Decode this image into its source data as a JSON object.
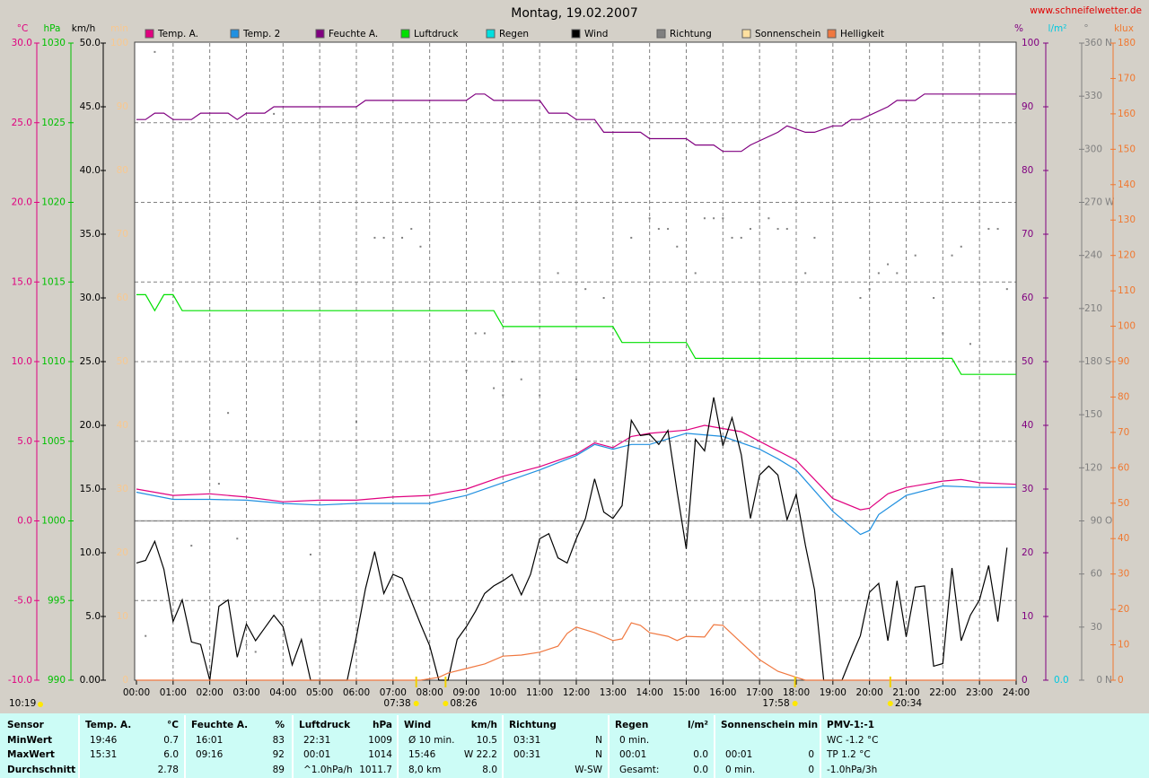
{
  "chart_data": {
    "type": "line",
    "title": "Montag, 19.02.2007",
    "source": "www.schneifelwetter.de",
    "xlim": [
      0,
      24
    ],
    "xticks": [
      {
        "value": 0,
        "label": "00:00"
      },
      {
        "value": 1,
        "label": "01:00"
      },
      {
        "value": 2,
        "label": "02:00"
      },
      {
        "value": 3,
        "label": "03:00"
      },
      {
        "value": 4,
        "label": "04:00"
      },
      {
        "value": 5,
        "label": "05:00"
      },
      {
        "value": 6,
        "label": "06:00"
      },
      {
        "value": 7,
        "label": "07:00"
      },
      {
        "value": 8,
        "label": "08:00"
      },
      {
        "value": 9,
        "label": "09:00"
      },
      {
        "value": 10,
        "label": "10:00"
      },
      {
        "value": 11,
        "label": "11:00"
      },
      {
        "value": 12,
        "label": "12:00"
      },
      {
        "value": 13,
        "label": "13:00"
      },
      {
        "value": 14,
        "label": "14:00"
      },
      {
        "value": 15,
        "label": "15:00"
      },
      {
        "value": 16,
        "label": "16:00"
      },
      {
        "value": 17,
        "label": "17:00"
      },
      {
        "value": 18,
        "label": "18:00"
      },
      {
        "value": 19,
        "label": "19:00"
      },
      {
        "value": 20,
        "label": "20:00"
      },
      {
        "value": 21,
        "label": "21:00"
      },
      {
        "value": 22,
        "label": "22:00"
      },
      {
        "value": 23,
        "label": "23:00"
      },
      {
        "value": 24,
        "label": "24:00"
      }
    ],
    "axes": [
      {
        "label": "°C",
        "color": "#e0007f",
        "lim": [
          -10,
          30
        ],
        "zero_line": true,
        "ticks": [
          {
            "value": -10,
            "label": "-10.0"
          },
          {
            "value": -5,
            "label": "-5.0"
          },
          {
            "value": 0,
            "label": "0.0"
          },
          {
            "value": 5,
            "label": "5.0"
          },
          {
            "value": 10,
            "label": "10.0"
          },
          {
            "value": 15,
            "label": "15.0"
          },
          {
            "value": 20,
            "label": "20.0"
          },
          {
            "value": 25,
            "label": "25.0"
          },
          {
            "value": 30,
            "label": "30.0"
          }
        ]
      },
      {
        "label": "hPa",
        "color": "#00c000",
        "lim": [
          990,
          1030
        ],
        "ticks": [
          990,
          995,
          1000,
          1005,
          1010,
          1015,
          1020,
          1025,
          1030
        ]
      },
      {
        "label": "km/h",
        "color": "#000000",
        "lim": [
          0,
          50
        ],
        "ticks": [
          {
            "value": 0,
            "label": "0.00"
          },
          {
            "value": 5,
            "label": "5.0"
          },
          {
            "value": 10,
            "label": "10.0"
          },
          {
            "value": 15,
            "label": "15.0"
          },
          {
            "value": 20,
            "label": "20.0"
          },
          {
            "value": 25,
            "label": "25.0"
          },
          {
            "value": 30,
            "label": "30.0"
          },
          {
            "value": 35,
            "label": "35.0"
          },
          {
            "value": 40,
            "label": "40.0"
          },
          {
            "value": 45,
            "label": "45.0"
          },
          {
            "value": 50,
            "label": "50.0"
          }
        ]
      },
      {
        "label": "min",
        "color": "#f8c890",
        "lim": [
          0,
          100
        ],
        "ticks": [
          0,
          10,
          20,
          30,
          40,
          50,
          60,
          70,
          80,
          90,
          100
        ]
      },
      {
        "label": "%",
        "color": "#800080",
        "lim": [
          0,
          100
        ],
        "ticks": [
          0,
          10,
          20,
          30,
          40,
          50,
          60,
          70,
          80,
          90,
          100
        ]
      },
      {
        "label": "l/m²",
        "color": "#00c8e0",
        "ticks": [
          {
            "value": 0,
            "label": "0.0"
          }
        ]
      },
      {
        "label": "°",
        "color": "#808080",
        "lim": [
          0,
          360
        ],
        "grid": [
          45,
          90,
          135,
          180,
          225,
          270,
          315
        ],
        "ticks": [
          0,
          30,
          60,
          90,
          120,
          150,
          180,
          210,
          240,
          270,
          300,
          330,
          360
        ],
        "compass": [
          {
            "value": 0,
            "label": "N"
          },
          {
            "value": 90,
            "label": "O"
          },
          {
            "value": 180,
            "label": "S"
          },
          {
            "value": 270,
            "label": "W"
          },
          {
            "value": 360,
            "label": "N"
          }
        ]
      },
      {
        "label": "klux",
        "color": "#f07830",
        "lim": [
          0,
          180
        ],
        "ticks": [
          0,
          10,
          20,
          30,
          40,
          50,
          60,
          70,
          80,
          90,
          100,
          110,
          120,
          130,
          140,
          150,
          160,
          170,
          180
        ]
      }
    ],
    "series": [
      {
        "name": "Temp. A.",
        "color": "#e0007f",
        "axis": "°C",
        "x": [
          0,
          1,
          2,
          3,
          4,
          5,
          6,
          7,
          8,
          9,
          10,
          11,
          12,
          12.5,
          13,
          13.5,
          14,
          15,
          15.5,
          16.5,
          17,
          18,
          19,
          19.75,
          20,
          20.5,
          21,
          22,
          22.5,
          23,
          24
        ],
        "values": [
          2.0,
          1.6,
          1.7,
          1.5,
          1.2,
          1.3,
          1.3,
          1.5,
          1.6,
          2.0,
          2.8,
          3.4,
          4.2,
          4.9,
          4.6,
          5.3,
          5.5,
          5.7,
          6.0,
          5.6,
          5.0,
          3.8,
          1.4,
          0.7,
          0.8,
          1.7,
          2.1,
          2.5,
          2.6,
          2.4,
          2.3
        ]
      },
      {
        "name": "Temp. 2",
        "color": "#2090e0",
        "axis": "°C",
        "x": [
          0,
          1,
          2,
          3,
          4,
          5,
          6,
          7,
          8,
          9,
          10,
          11,
          12,
          12.5,
          13,
          13.5,
          14,
          15,
          16,
          17,
          17.5,
          18,
          19,
          19.75,
          20,
          20.25,
          21,
          22,
          23,
          24
        ],
        "values": [
          1.8,
          1.35,
          1.35,
          1.3,
          1.1,
          1.0,
          1.1,
          1.1,
          1.1,
          1.6,
          2.4,
          3.2,
          4.1,
          4.8,
          4.5,
          4.8,
          4.8,
          5.5,
          5.3,
          4.5,
          3.9,
          3.2,
          0.6,
          -0.85,
          -0.6,
          0.4,
          1.6,
          2.2,
          2.1,
          2.1
        ]
      },
      {
        "name": "Feuchte A.",
        "color": "#800080",
        "axis": "%",
        "x": [
          0,
          0.25,
          0.5,
          0.75,
          1,
          1.5,
          1.75,
          2.5,
          2.75,
          3,
          3.5,
          3.75,
          6,
          6.25,
          9,
          9.25,
          9.5,
          9.75,
          11,
          11.25,
          11.75,
          12,
          12.5,
          12.75,
          13.75,
          14,
          15,
          15.25,
          15.75,
          16,
          16.5,
          16.75,
          17.5,
          17.75,
          18.25,
          18.5,
          19,
          19.25,
          19.5,
          19.75,
          20.5,
          20.75,
          21.25,
          21.5,
          24
        ],
        "values": [
          88,
          88,
          89,
          89,
          88,
          88,
          89,
          89,
          88,
          89,
          89,
          90,
          90,
          91,
          91,
          92,
          92,
          91,
          91,
          89,
          89,
          88,
          88,
          86,
          86,
          85,
          85,
          84,
          84,
          83,
          83,
          84,
          86,
          87,
          86,
          86,
          87,
          87,
          88,
          88,
          90,
          91,
          91,
          92,
          92
        ]
      },
      {
        "name": "Luftdruck",
        "color": "#00e000",
        "axis": "hPa",
        "x": [
          0,
          0.25,
          0.5,
          0.75,
          1,
          1.25,
          9.75,
          10,
          13,
          13.25,
          15,
          15.25,
          22.25,
          22.5,
          24
        ],
        "values": [
          1014.2,
          1014.2,
          1013.2,
          1014.2,
          1014.2,
          1013.2,
          1013.2,
          1012.2,
          1012.2,
          1011.2,
          1011.2,
          1010.2,
          1010.2,
          1009.2,
          1009.2
        ]
      },
      {
        "name": "Regen",
        "color": "#00e0e0",
        "axis": "l/m²"
      },
      {
        "name": "Wind",
        "color": "#000000",
        "axis": "km/h",
        "x": [
          0,
          0.25,
          0.5,
          0.75,
          1,
          1.25,
          1.5,
          1.75,
          2,
          2.25,
          2.5,
          2.75,
          3,
          3.25,
          3.5,
          3.75,
          4,
          4.25,
          4.5,
          4.75,
          5,
          5.25,
          5.5,
          5.75,
          6,
          6.25,
          6.5,
          6.75,
          7,
          7.25,
          7.5,
          7.75,
          8,
          8.25,
          8.5,
          8.75,
          9,
          9.25,
          9.5,
          9.75,
          10,
          10.25,
          10.5,
          10.75,
          11,
          11.25,
          11.5,
          11.75,
          12,
          12.25,
          12.5,
          12.75,
          13,
          13.25,
          13.5,
          13.75,
          14,
          14.25,
          14.5,
          14.75,
          15,
          15.25,
          15.5,
          15.75,
          16,
          16.25,
          16.5,
          16.75,
          17,
          17.25,
          17.5,
          17.75,
          18,
          18.25,
          18.5,
          18.75,
          19,
          19.25,
          19.5,
          19.75,
          20,
          20.25,
          20.5,
          20.75,
          21,
          21.25,
          21.5,
          21.75,
          22,
          22.25,
          22.5,
          22.75,
          23,
          23.25,
          23.5,
          23.75
        ],
        "values": [
          9.2,
          9.4,
          10.9,
          8.7,
          4.6,
          6.3,
          3.0,
          2.8,
          0,
          5.8,
          6.3,
          1.8,
          4.4,
          3.1,
          4.1,
          5.1,
          4.2,
          1.2,
          3.2,
          0,
          0,
          0,
          0,
          0,
          3.4,
          7.2,
          10.1,
          6.8,
          8.3,
          8.0,
          6.2,
          4.4,
          2.7,
          0,
          0,
          3.2,
          4.2,
          5.4,
          6.8,
          7.4,
          7.8,
          8.3,
          6.7,
          8.3,
          11.1,
          11.5,
          9.6,
          9.2,
          11.1,
          12.7,
          15.8,
          13.2,
          12.7,
          13.7,
          20.4,
          19.2,
          19.3,
          18.5,
          19.6,
          14.8,
          10.3,
          18.9,
          18.0,
          22.2,
          18.4,
          20.6,
          17.7,
          12.7,
          16.1,
          16.8,
          16.1,
          12.6,
          14.6,
          10.6,
          7.1,
          0,
          0,
          0,
          1.8,
          3.5,
          6.9,
          7.6,
          3.1,
          7.8,
          3.4,
          7.3,
          7.4,
          1.1,
          1.3,
          8.8,
          3.1,
          5.1,
          6.3,
          9.0,
          4.6,
          10.4
        ]
      },
      {
        "name": "Richtung",
        "color": "#808080",
        "axis": "°",
        "type": "scatter",
        "x": [
          0.25,
          0.5,
          1.5,
          2.25,
          2.5,
          2.75,
          3,
          3.25,
          3.75,
          4.75,
          6,
          6.5,
          6.75,
          7.25,
          7.5,
          7.75,
          9,
          9.25,
          9.5,
          9.75,
          10,
          10.25,
          10.5,
          11,
          11.5,
          12,
          12.25,
          12.75,
          13.5,
          14,
          14.25,
          14.5,
          14.75,
          15.25,
          15.5,
          15.75,
          16,
          16.25,
          16.5,
          16.75,
          17.25,
          17.5,
          17.75,
          18.25,
          18.5,
          19.75,
          20,
          20.25,
          20.5,
          20.75,
          21.25,
          21.75,
          22,
          22.25,
          22.5,
          22.75,
          23.25,
          23.5,
          23.75
        ],
        "values": [
          25,
          355,
          76,
          111,
          151,
          80,
          20,
          16,
          320,
          71,
          146,
          250,
          250,
          250,
          255,
          245,
          175,
          196,
          196,
          165,
          161,
          180,
          170,
          161,
          230,
          170,
          221,
          216,
          250,
          261,
          255,
          255,
          245,
          230,
          261,
          261,
          261,
          250,
          250,
          255,
          261,
          255,
          255,
          230,
          250,
          216,
          221,
          230,
          235,
          230,
          240,
          216,
          196,
          240,
          245,
          190,
          255,
          255,
          221
        ]
      },
      {
        "name": "Sonnenschein",
        "color": "#ffe0a0",
        "axis": "min"
      },
      {
        "name": "Helligkeit",
        "color": "#f07840",
        "axis": "klux",
        "x": [
          0,
          7.75,
          8.25,
          8.5,
          9,
          9.5,
          10,
          10.5,
          11,
          11.5,
          11.75,
          12,
          12.5,
          13,
          13.25,
          13.5,
          13.75,
          14,
          14.5,
          14.75,
          15,
          15.5,
          15.75,
          16,
          16.5,
          17,
          17.5,
          18,
          18.25,
          24
        ],
        "values": [
          0,
          0,
          0.8,
          2,
          3.3,
          4.6,
          6.8,
          7.1,
          7.9,
          9.6,
          13.2,
          15.0,
          13.4,
          11.2,
          11.7,
          16.2,
          15.5,
          13.4,
          12.4,
          11.2,
          12.4,
          12.2,
          15.7,
          15.5,
          10.6,
          5.8,
          2.5,
          0.8,
          0,
          0
        ]
      }
    ],
    "day_length": "10:19",
    "annotations": [
      {
        "x": 7.633,
        "label": "07:38"
      },
      {
        "x": 8.433,
        "label": "08:26"
      },
      {
        "x": 17.967,
        "label": "17:58"
      },
      {
        "x": 20.567,
        "label": "20:34"
      }
    ]
  },
  "table": {
    "row_labels": [
      "Sensor",
      "MinWert",
      "MaxWert",
      "Durchschnitt"
    ],
    "columns": [
      {
        "name": "Temp. A.",
        "unit": "°C",
        "cells": [
          [
            "19:46",
            "0.7"
          ],
          [
            "15:31",
            "6.0"
          ],
          [
            null,
            "2.78"
          ]
        ]
      },
      {
        "name": "Feuchte A.",
        "unit": "%",
        "cells": [
          [
            "16:01",
            "83"
          ],
          [
            "09:16",
            "92"
          ],
          [
            null,
            "89"
          ]
        ]
      },
      {
        "name": "Luftdruck",
        "unit": "hPa",
        "cells": [
          [
            "22:31",
            "1009"
          ],
          [
            "00:01",
            "1014"
          ],
          [
            "^1.0hPa/h",
            "1011.7"
          ]
        ]
      },
      {
        "name": "Wind",
        "unit": "km/h",
        "cells": [
          [
            "Ø 10 min.",
            "10.5"
          ],
          [
            "15:46",
            "W 22.2"
          ],
          [
            "8,0 km",
            "8.0"
          ]
        ]
      },
      {
        "name": "Richtung",
        "unit": null,
        "cells": [
          [
            "03:31",
            "N"
          ],
          [
            "00:31",
            "N"
          ],
          [
            null,
            "W-SW"
          ]
        ]
      },
      {
        "name": "Regen",
        "unit": "l/m²",
        "cells": [
          [
            "0 min.",
            null
          ],
          [
            "00:01",
            "0.0"
          ],
          [
            "Gesamt:",
            "0.0"
          ]
        ]
      },
      {
        "name": "Sonnenschein min",
        "unit": null,
        "cells": [
          [
            null,
            null
          ],
          [
            "00:01",
            "0"
          ],
          [
            "0 min.",
            "0"
          ]
        ]
      },
      {
        "name": "PMV-1:-1",
        "unit": null,
        "cells": [
          [
            "WC -1.2 °C",
            null
          ],
          [
            "TP 1.2 °C",
            null
          ],
          [
            "-1.0hPa/3h",
            null
          ]
        ]
      }
    ]
  }
}
